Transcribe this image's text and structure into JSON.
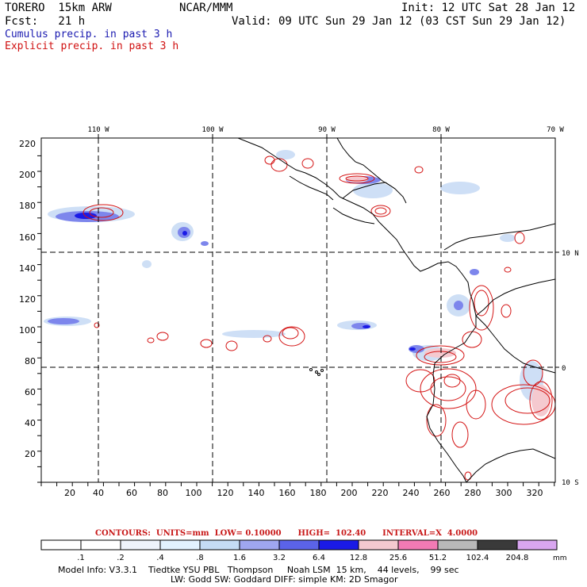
{
  "header": {
    "model": "TORERO  15km ARW",
    "center": "NCAR/MMM",
    "init": "Init: 12 UTC Sat 28 Jan 12",
    "fcst": "Fcst:   21 h",
    "valid": "Valid: 09 UTC Sun 29 Jan 12 (03 CST Sun 29 Jan 12)",
    "line_blue": "Cumulus precip. in past 3 h",
    "line_red": "Explicit precip. in past 3 h"
  },
  "axes": {
    "top_lon_labels": [
      "110 W",
      "100 W",
      "90 W",
      "80 W",
      "70 W"
    ],
    "right_lat_labels": [
      "10 N",
      "0",
      "10 S"
    ],
    "left_ticks": [
      "220",
      "200",
      "180",
      "160",
      "140",
      "120",
      "100",
      "80",
      "60",
      "40",
      "20"
    ],
    "bottom_ticks": [
      "20",
      "40",
      "60",
      "80",
      "100",
      "120",
      "140",
      "160",
      "180",
      "200",
      "220",
      "240",
      "260",
      "280",
      "300",
      "320"
    ]
  },
  "contours_line": {
    "label": "CONTOURS:  UNITS=mm  LOW= 0.10000      HIGH=  102.40      INTERVAL=X  4.0000"
  },
  "colorbar": {
    "labels": [
      ".1",
      ".2",
      ".4",
      ".8",
      "1.6",
      "3.2",
      "6.4",
      "12.8",
      "25.6",
      "51.2",
      "102.4",
      "204.8"
    ],
    "unit": "mm",
    "colors": [
      "#ffffff",
      "#ffffff",
      "#eef3fb",
      "#e2f2ff",
      "#c5dcf5",
      "#9fa6f0",
      "#5b63e8",
      "#1a1ae6",
      "#f5c9cf",
      "#f27ab4",
      "#b9b9b9",
      "#3a3a3a",
      "#d9a6f0"
    ]
  },
  "model_info": {
    "line1": "Model Info: V3.3.1    Tiedtke YSU PBL   Thompson     Noah LSM  15 km,    44 levels,    99 sec",
    "line2": "LW: Godd SW: Goddard DIFF: simple KM: 2D Smagor"
  }
}
